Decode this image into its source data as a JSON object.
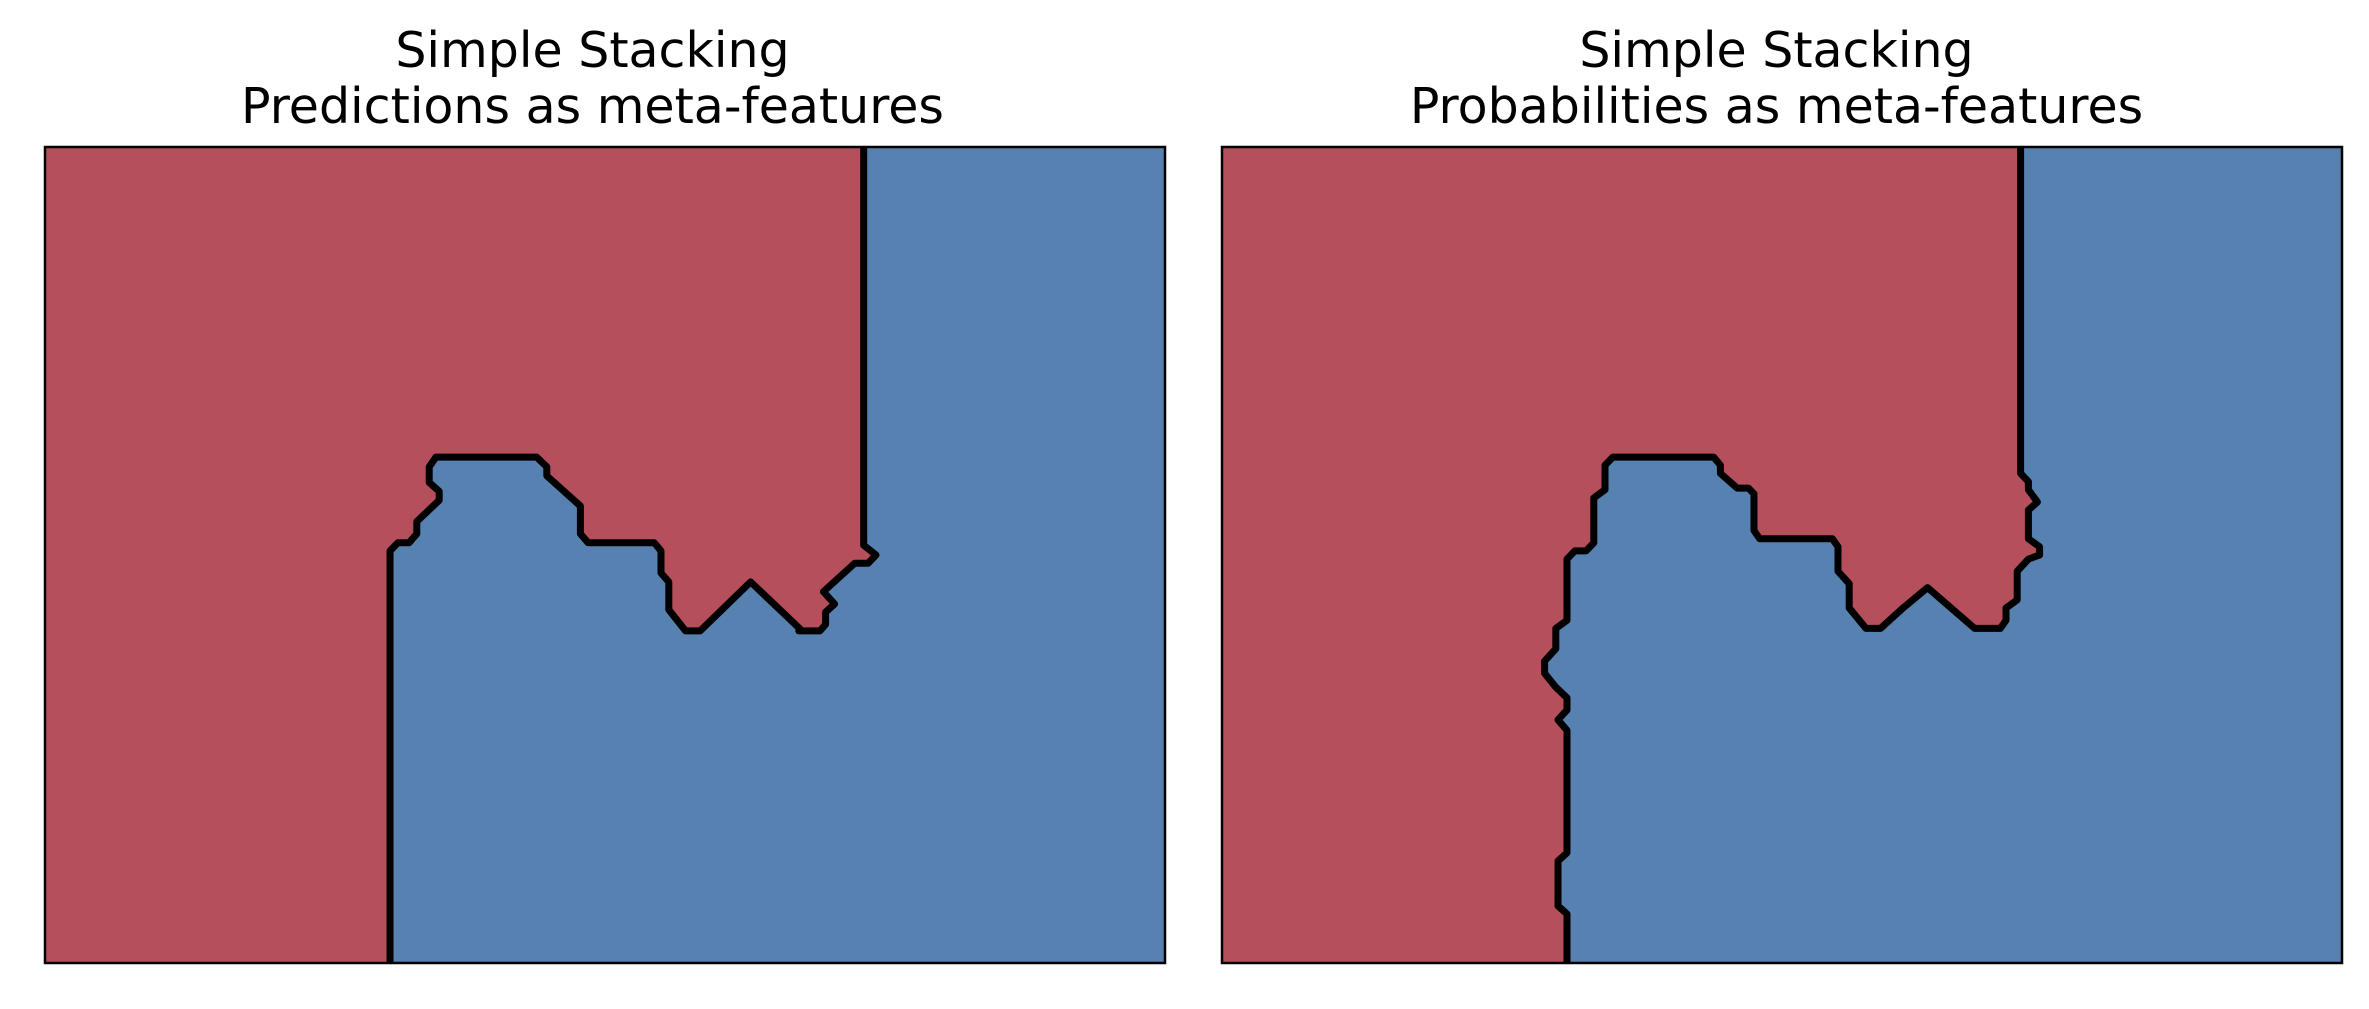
{
  "chart_data": [
    {
      "type": "heatmap",
      "subtype": "decision-boundary",
      "title": [
        "Simple Stacking",
        "Predictions as meta-features"
      ],
      "xlabel": "",
      "ylabel": "",
      "xlim": [
        0,
        1
      ],
      "ylim": [
        0,
        1
      ],
      "ticks": "none",
      "grid": false,
      "legend": "none",
      "region_colors": {
        "class_0": "#b64f5c",
        "class_1": "#5681b1"
      },
      "boundary_color": "#000000",
      "boundary": [
        [
          0.308,
          0.0
        ],
        [
          0.308,
          0.505
        ],
        [
          0.315,
          0.515
        ],
        [
          0.325,
          0.515
        ],
        [
          0.332,
          0.526
        ],
        [
          0.332,
          0.541
        ],
        [
          0.352,
          0.567
        ],
        [
          0.352,
          0.578
        ],
        [
          0.343,
          0.589
        ],
        [
          0.343,
          0.608
        ],
        [
          0.349,
          0.62
        ],
        [
          0.439,
          0.62
        ],
        [
          0.448,
          0.608
        ],
        [
          0.448,
          0.597
        ],
        [
          0.478,
          0.56
        ],
        [
          0.478,
          0.526
        ],
        [
          0.485,
          0.515
        ],
        [
          0.544,
          0.515
        ],
        [
          0.55,
          0.505
        ],
        [
          0.55,
          0.478
        ],
        [
          0.557,
          0.467
        ],
        [
          0.557,
          0.433
        ],
        [
          0.572,
          0.407
        ],
        [
          0.585,
          0.407
        ],
        [
          0.63,
          0.467
        ],
        [
          0.676,
          0.407
        ],
        [
          0.673,
          0.407
        ],
        [
          0.692,
          0.407
        ],
        [
          0.697,
          0.415
        ],
        [
          0.697,
          0.43
        ],
        [
          0.705,
          0.44
        ],
        [
          0.695,
          0.455
        ],
        [
          0.723,
          0.49
        ],
        [
          0.735,
          0.49
        ],
        [
          0.742,
          0.5
        ],
        [
          0.731,
          0.512
        ],
        [
          0.731,
          1.0
        ]
      ]
    },
    {
      "type": "heatmap",
      "subtype": "decision-boundary",
      "title": [
        "Simple Stacking",
        "Probabilities as meta-features"
      ],
      "xlabel": "",
      "ylabel": "",
      "xlim": [
        0,
        1
      ],
      "ylim": [
        0,
        1
      ],
      "ticks": "none",
      "grid": false,
      "legend": "none",
      "region_colors": {
        "class_0": "#b64f5c",
        "class_1": "#5681b1"
      },
      "boundary_color": "#000000",
      "boundary": [
        [
          0.308,
          0.0
        ],
        [
          0.308,
          0.06
        ],
        [
          0.3,
          0.07
        ],
        [
          0.3,
          0.125
        ],
        [
          0.308,
          0.135
        ],
        [
          0.308,
          0.285
        ],
        [
          0.3,
          0.298
        ],
        [
          0.308,
          0.31
        ],
        [
          0.308,
          0.325
        ],
        [
          0.298,
          0.338
        ],
        [
          0.288,
          0.355
        ],
        [
          0.288,
          0.37
        ],
        [
          0.298,
          0.385
        ],
        [
          0.298,
          0.41
        ],
        [
          0.308,
          0.42
        ],
        [
          0.308,
          0.495
        ],
        [
          0.315,
          0.505
        ],
        [
          0.325,
          0.505
        ],
        [
          0.332,
          0.515
        ],
        [
          0.332,
          0.57
        ],
        [
          0.342,
          0.58
        ],
        [
          0.342,
          0.61
        ],
        [
          0.349,
          0.62
        ],
        [
          0.439,
          0.62
        ],
        [
          0.445,
          0.61
        ],
        [
          0.445,
          0.6
        ],
        [
          0.46,
          0.582
        ],
        [
          0.47,
          0.582
        ],
        [
          0.475,
          0.575
        ],
        [
          0.475,
          0.53
        ],
        [
          0.48,
          0.52
        ],
        [
          0.545,
          0.52
        ],
        [
          0.55,
          0.51
        ],
        [
          0.55,
          0.48
        ],
        [
          0.56,
          0.465
        ],
        [
          0.56,
          0.435
        ],
        [
          0.575,
          0.41
        ],
        [
          0.588,
          0.41
        ],
        [
          0.608,
          0.435
        ],
        [
          0.63,
          0.46
        ],
        [
          0.672,
          0.41
        ],
        [
          0.695,
          0.41
        ],
        [
          0.7,
          0.42
        ],
        [
          0.7,
          0.435
        ],
        [
          0.71,
          0.445
        ],
        [
          0.71,
          0.48
        ],
        [
          0.72,
          0.495
        ],
        [
          0.73,
          0.5
        ],
        [
          0.73,
          0.51
        ],
        [
          0.72,
          0.52
        ],
        [
          0.72,
          0.555
        ],
        [
          0.728,
          0.565
        ],
        [
          0.72,
          0.58
        ],
        [
          0.72,
          0.59
        ],
        [
          0.713,
          0.6
        ],
        [
          0.713,
          1.0
        ]
      ]
    }
  ]
}
